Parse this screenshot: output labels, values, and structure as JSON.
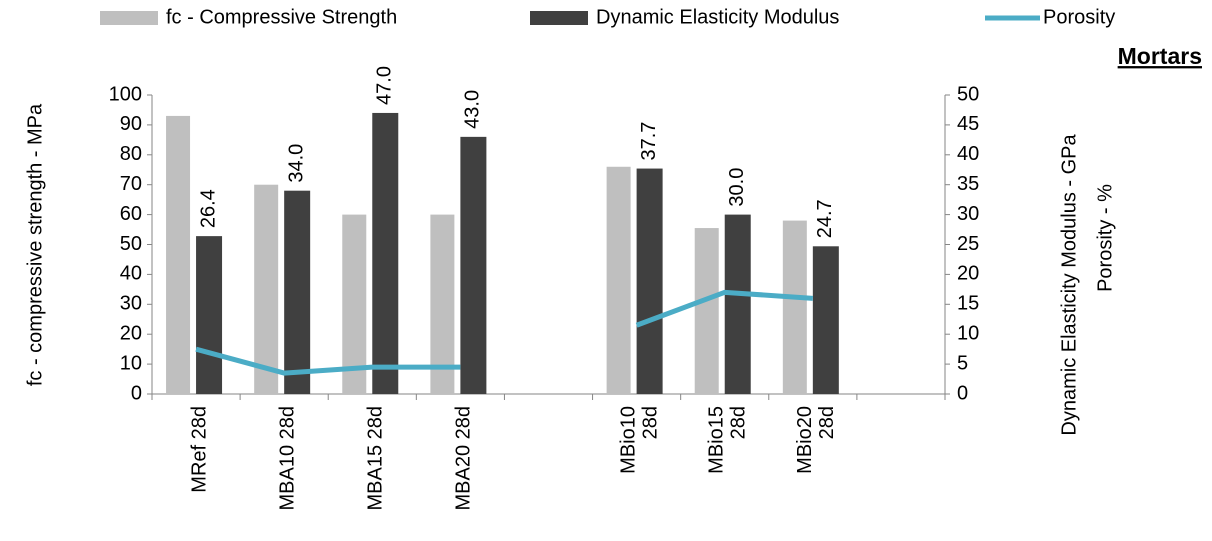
{
  "chart_data": {
    "type": "bar",
    "title": "Mortars",
    "ylabel": "fc - compressive strength  - MPa",
    "y2labels": [
      "Dynamic Elasticity Modulus - GPa",
      "Porosity - %"
    ],
    "categories": [
      "MRef 28d",
      "MBA10 28d",
      "MBA15 28d",
      "MBA20 28d",
      null,
      "MBio10 28d",
      "MBio15 28d",
      "MBio20 28d",
      null
    ],
    "series": [
      {
        "name": "fc - Compressive Strength",
        "color": "#bfbfbf",
        "axis": "y",
        "values": [
          93,
          70,
          60,
          60,
          null,
          76,
          55.5,
          58,
          null
        ]
      },
      {
        "name": "Dynamic Elasticity Modulus",
        "color": "#404040",
        "axis": "y2",
        "values": [
          26.4,
          34,
          47,
          43,
          null,
          37.7,
          30,
          24.7,
          null
        ],
        "value_labels": [
          "26.4",
          "34.0",
          "47.0",
          "43.0",
          null,
          "37.7",
          "30.0",
          "24.7",
          null
        ]
      },
      {
        "name": "Porosity",
        "color": "#4bacc6",
        "axis": "y2",
        "type": "line",
        "values": [
          7.5,
          3.5,
          4.5,
          4.5,
          null,
          11.5,
          17,
          16,
          null
        ]
      }
    ],
    "ylim": [
      0,
      100
    ],
    "yticks": [
      0,
      10,
      20,
      30,
      40,
      50,
      60,
      70,
      80,
      90,
      100
    ],
    "y2lim": [
      0,
      50
    ],
    "y2ticks": [
      0,
      5,
      10,
      15,
      20,
      25,
      30,
      35,
      40,
      45,
      50
    ],
    "grid": false
  }
}
